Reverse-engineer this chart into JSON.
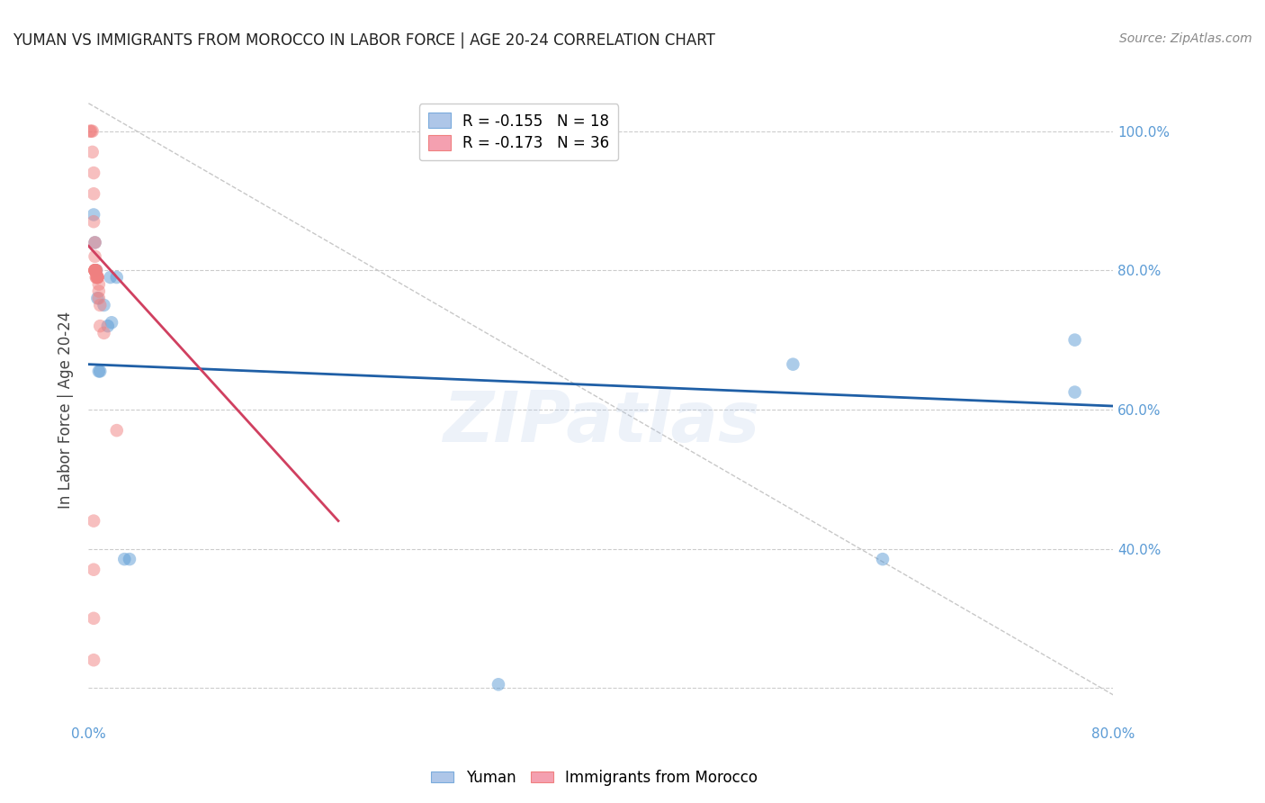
{
  "title": "YUMAN VS IMMIGRANTS FROM MOROCCO IN LABOR FORCE | AGE 20-24 CORRELATION CHART",
  "source": "Source: ZipAtlas.com",
  "ylabel": "In Labor Force | Age 20-24",
  "xlim": [
    0.0,
    0.8
  ],
  "ylim": [
    0.15,
    1.05
  ],
  "x_ticks": [
    0.0,
    0.1,
    0.2,
    0.3,
    0.4,
    0.5,
    0.6,
    0.7,
    0.8
  ],
  "x_tick_labels": [
    "0.0%",
    "",
    "",
    "",
    "",
    "",
    "",
    "",
    "80.0%"
  ],
  "y_ticks": [
    0.2,
    0.4,
    0.6,
    0.8,
    1.0
  ],
  "y_tick_labels": [
    "",
    "40.0%",
    "60.0%",
    "80.0%",
    "100.0%"
  ],
  "legend1_label": "R = -0.155   N = 18",
  "legend2_label": "R = -0.173   N = 36",
  "legend1_color": "#aec6e8",
  "legend2_color": "#f4a0b0",
  "blue_scatter_x": [
    0.004,
    0.005,
    0.006,
    0.007,
    0.008,
    0.009,
    0.012,
    0.015,
    0.017,
    0.018,
    0.022,
    0.028,
    0.032,
    0.55,
    0.62,
    0.77,
    0.77,
    0.32
  ],
  "blue_scatter_y": [
    0.88,
    0.84,
    0.8,
    0.76,
    0.655,
    0.655,
    0.75,
    0.72,
    0.79,
    0.725,
    0.79,
    0.385,
    0.385,
    0.665,
    0.385,
    0.7,
    0.625,
    0.205
  ],
  "pink_scatter_x": [
    0.001,
    0.002,
    0.003,
    0.003,
    0.004,
    0.004,
    0.004,
    0.005,
    0.005,
    0.005,
    0.005,
    0.005,
    0.005,
    0.005,
    0.005,
    0.005,
    0.006,
    0.006,
    0.006,
    0.006,
    0.007,
    0.007,
    0.007,
    0.007,
    0.007,
    0.008,
    0.008,
    0.008,
    0.009,
    0.009,
    0.012,
    0.022,
    0.004,
    0.004,
    0.004,
    0.004
  ],
  "pink_scatter_y": [
    1.0,
    1.0,
    1.0,
    0.97,
    0.94,
    0.91,
    0.87,
    0.84,
    0.82,
    0.8,
    0.8,
    0.8,
    0.8,
    0.8,
    0.8,
    0.8,
    0.8,
    0.8,
    0.79,
    0.79,
    0.79,
    0.79,
    0.79,
    0.79,
    0.79,
    0.78,
    0.77,
    0.76,
    0.75,
    0.72,
    0.71,
    0.57,
    0.44,
    0.37,
    0.3,
    0.24
  ],
  "blue_line_x": [
    0.0,
    0.8
  ],
  "blue_line_y": [
    0.665,
    0.605
  ],
  "pink_line_x": [
    0.0,
    0.195
  ],
  "pink_line_y": [
    0.835,
    0.44
  ],
  "diagonal_line_x": [
    0.0,
    0.8
  ],
  "diagonal_line_y": [
    1.04,
    0.19
  ],
  "watermark": "ZIPatlas",
  "scatter_size": 110,
  "scatter_alpha": 0.5,
  "blue_color": "#5b9bd5",
  "pink_color": "#f08080",
  "blue_line_color": "#1f5fa6",
  "pink_line_color": "#d04060"
}
